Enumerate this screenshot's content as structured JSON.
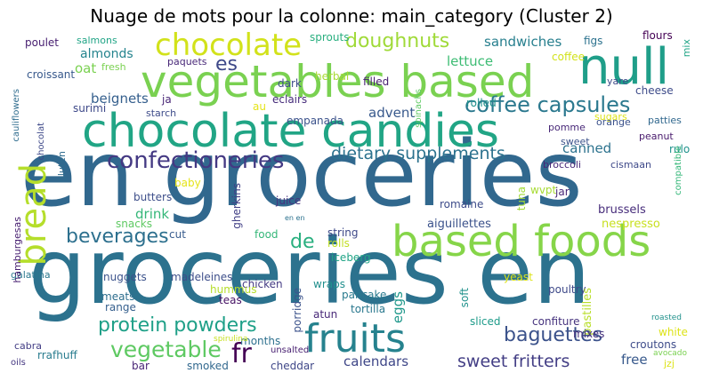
{
  "title": "Nuage de mots pour la colonne: main_category (Cluster 2)",
  "words": [
    {
      "text": "en groceries",
      "color": "#31688e",
      "rot": 0
    },
    {
      "text": "groceries en",
      "color": "#2c728e",
      "rot": 0
    },
    {
      "text": "chocolate candies",
      "color": "#21a585",
      "rot": 0
    },
    {
      "text": "vegetables based",
      "color": "#7ad151",
      "rot": 0
    },
    {
      "text": "null",
      "color": "#1f9e89",
      "rot": 0
    },
    {
      "text": "based foods",
      "color": "#86d549",
      "rot": 0
    },
    {
      "text": "fruits",
      "color": "#26828e",
      "rot": 0
    },
    {
      "text": "bread",
      "color": "#b5de2b",
      "rot": -90
    },
    {
      "text": "chocolate",
      "color": "#d2e21b",
      "rot": 0
    },
    {
      "text": "confectioneries",
      "color": "#443983",
      "rot": 0
    },
    {
      "text": "coffee capsules",
      "color": "#2a788e",
      "rot": 0
    },
    {
      "text": "protein powders",
      "color": "#1fa088",
      "rot": 0
    },
    {
      "text": "beverages",
      "color": "#2d708e",
      "rot": 0
    },
    {
      "text": "dietary supplements",
      "color": "#2c728e",
      "rot": 0
    },
    {
      "text": "vegetable",
      "color": "#5ec962",
      "rot": 0
    },
    {
      "text": "doughnuts",
      "color": "#a0da39",
      "rot": 0
    },
    {
      "text": "baguettes",
      "color": "#3b528b",
      "rot": 0
    },
    {
      "text": "sweet fritters",
      "color": "#433e85",
      "rot": 0
    },
    {
      "text": "fr",
      "color": "#440154",
      "rot": 0
    },
    {
      "text": "de",
      "color": "#29af7f",
      "rot": 0
    },
    {
      "text": "es",
      "color": "#3e4989",
      "rot": 0
    },
    {
      "text": "calendars",
      "color": "#3f4788",
      "rot": 0
    },
    {
      "text": "sandwiches",
      "color": "#277f8e",
      "rot": 0
    },
    {
      "text": "beignets",
      "color": "#355f8d",
      "rot": 0
    },
    {
      "text": "advent",
      "color": "#38598c",
      "rot": 0
    },
    {
      "text": "lettuce",
      "color": "#3dbc74",
      "rot": 0
    },
    {
      "text": "almonds",
      "color": "#25848e",
      "rot": 0
    },
    {
      "text": "oat",
      "color": "#7ad151",
      "rot": 0
    },
    {
      "text": "drink",
      "color": "#35b779",
      "rot": 0
    },
    {
      "text": "canned",
      "color": "#2c728e",
      "rot": 0
    },
    {
      "text": "free",
      "color": "#38598c",
      "rot": 0
    },
    {
      "text": "eggs",
      "color": "#1f988b",
      "rot": -90
    },
    {
      "text": "croutons",
      "color": "#3e4c8a",
      "rot": 0
    },
    {
      "text": "brussels",
      "color": "#472d7b",
      "rot": 0
    },
    {
      "text": "nespresso",
      "color": "#c8e020",
      "rot": 0
    },
    {
      "text": "aiguillettes",
      "color": "#3b528b",
      "rot": 0
    },
    {
      "text": "juice",
      "color": "#46337e",
      "rot": 0
    },
    {
      "text": "poultry",
      "color": "#3e4989",
      "rot": 0
    },
    {
      "text": "pastilles",
      "color": "#b8de29",
      "rot": -90
    },
    {
      "text": "mixes",
      "color": "#46327e",
      "rot": 0
    },
    {
      "text": "confiture",
      "color": "#46337e",
      "rot": 0
    },
    {
      "text": "sliced",
      "color": "#1e9b8a",
      "rot": 0
    },
    {
      "text": "white",
      "color": "#dde318",
      "rot": 0
    },
    {
      "text": "wraps",
      "color": "#218f8d",
      "rot": 0
    },
    {
      "text": "pancake",
      "color": "#297a8e",
      "rot": 0
    },
    {
      "text": "tortilla",
      "color": "#2a788e",
      "rot": 0
    },
    {
      "text": "atun",
      "color": "#482878",
      "rot": 0
    },
    {
      "text": "cheddar",
      "color": "#3f4788",
      "rot": 0
    },
    {
      "text": "smoked",
      "color": "#31688e",
      "rot": 0
    },
    {
      "text": "bar",
      "color": "#482576",
      "rot": 0
    },
    {
      "text": "months",
      "color": "#2d708e",
      "rot": 0
    },
    {
      "text": "chicken",
      "color": "#443b84",
      "rot": 0
    },
    {
      "text": "teas",
      "color": "#471365",
      "rot": 0
    },
    {
      "text": "hummus",
      "color": "#b5de2b",
      "rot": 0
    },
    {
      "text": "meats",
      "color": "#2e6e8e",
      "rot": 0
    },
    {
      "text": "range",
      "color": "#355f8d",
      "rot": 0
    },
    {
      "text": "madeleines",
      "color": "#3d4e8a",
      "rot": 0
    },
    {
      "text": "nuggets",
      "color": "#3b528b",
      "rot": 0
    },
    {
      "text": "galatina",
      "color": "#2a788e",
      "rot": 0
    },
    {
      "text": "hamburgesas",
      "color": "#482071",
      "rot": -90
    },
    {
      "text": "cabra",
      "color": "#433e85",
      "rot": 0
    },
    {
      "text": "rrafhuff",
      "color": "#287c8e",
      "rot": 0
    },
    {
      "text": "oils",
      "color": "#453781",
      "rot": 0
    },
    {
      "text": "porridge",
      "color": "#3b528b",
      "rot": -90
    },
    {
      "text": "gherkins",
      "color": "#424086",
      "rot": -90
    },
    {
      "text": "tuna",
      "color": "#a2da37",
      "rot": -90
    },
    {
      "text": "cut",
      "color": "#375b8d",
      "rot": 0
    },
    {
      "text": "food",
      "color": "#35b779",
      "rot": 0
    },
    {
      "text": "rolls",
      "color": "#c2df23",
      "rot": 0
    },
    {
      "text": "iceberg",
      "color": "#20a486",
      "rot": 0
    },
    {
      "text": "string",
      "color": "#3e4989",
      "rot": 0
    },
    {
      "text": "romaine",
      "color": "#3e4c8a",
      "rot": 0
    },
    {
      "text": "wvpt",
      "color": "#a8db34",
      "rot": 0
    },
    {
      "text": "jar",
      "color": "#482878",
      "rot": 0
    },
    {
      "text": "soft",
      "color": "#20928c",
      "rot": -90
    },
    {
      "text": "yeast",
      "color": "#dde318",
      "rot": 0
    },
    {
      "text": "snacks",
      "color": "#5ec962",
      "rot": 0
    },
    {
      "text": "butters",
      "color": "#3d4e8a",
      "rot": 0
    },
    {
      "text": "baby",
      "color": "#e5e419",
      "rot": 0
    },
    {
      "text": "gluten",
      "color": "#2f6c8e",
      "rot": -90
    },
    {
      "text": "surimi",
      "color": "#3e4989",
      "rot": 0
    },
    {
      "text": "starch",
      "color": "#3e4c8a",
      "rot": 0
    },
    {
      "text": "ja",
      "color": "#482576",
      "rot": 0
    },
    {
      "text": "au",
      "color": "#e5e419",
      "rot": 0
    },
    {
      "text": "eclairs",
      "color": "#472d7b",
      "rot": 0
    },
    {
      "text": "empanada",
      "color": "#3b528b",
      "rot": 0
    },
    {
      "text": "rolled",
      "color": "#21918c",
      "rot": 0
    },
    {
      "text": "filled",
      "color": "#482071",
      "rot": 0
    },
    {
      "text": "herbal",
      "color": "#a8db34",
      "rot": 0
    },
    {
      "text": "dark",
      "color": "#3e4c8a",
      "rot": 0
    },
    {
      "text": "paquets",
      "color": "#482878",
      "rot": 0
    },
    {
      "text": "fresh",
      "color": "#7ad151",
      "rot": 0
    },
    {
      "text": "salmons",
      "color": "#20a486",
      "rot": 0
    },
    {
      "text": "poulet",
      "color": "#482071",
      "rot": 0
    },
    {
      "text": "croissant",
      "color": "#38598c",
      "rot": 0
    },
    {
      "text": "cauliflowers",
      "color": "#2f6c8e",
      "rot": -90
    },
    {
      "text": "chocolat",
      "color": "#3e4989",
      "rot": -90
    },
    {
      "text": "sprouts",
      "color": "#29af7f",
      "rot": 0
    },
    {
      "text": "spinachs",
      "color": "#5ec962",
      "rot": -90
    },
    {
      "text": "coffee",
      "color": "#d2e21b",
      "rot": 0
    },
    {
      "text": "figs",
      "color": "#2c728e",
      "rot": 0
    },
    {
      "text": "flours",
      "color": "#440154",
      "rot": 0
    },
    {
      "text": "mix",
      "color": "#20a486",
      "rot": -90
    },
    {
      "text": "cheese",
      "color": "#3e4c8a",
      "rot": 0
    },
    {
      "text": "yare",
      "color": "#3e4989",
      "rot": 0
    },
    {
      "text": "sugars",
      "color": "#dde318",
      "rot": 0
    },
    {
      "text": "pomme",
      "color": "#482878",
      "rot": 0
    },
    {
      "text": "sweet",
      "color": "#3b528b",
      "rot": 0
    },
    {
      "text": "orange",
      "color": "#3b528b",
      "rot": 0
    },
    {
      "text": "patties",
      "color": "#31688e",
      "rot": 0
    },
    {
      "text": "peanut",
      "color": "#481a6c",
      "rot": 0
    },
    {
      "text": "rulo",
      "color": "#20928c",
      "rot": 0
    },
    {
      "text": "broccoli",
      "color": "#482878",
      "rot": 0
    },
    {
      "text": "cismaan",
      "color": "#3e4989",
      "rot": 0
    },
    {
      "text": "compatible",
      "color": "#35b779",
      "rot": -90
    },
    {
      "text": "roasted",
      "color": "#21918c",
      "rot": 0
    },
    {
      "text": "spirulina",
      "color": "#c8e020",
      "rot": 0
    },
    {
      "text": "unsalted",
      "color": "#482071",
      "rot": 0
    },
    {
      "text": "avocado",
      "color": "#7ad151",
      "rot": 0
    },
    {
      "text": "jzj",
      "color": "#dde318",
      "rot": 0
    },
    {
      "text": "en en",
      "color": "#2c728e",
      "rot": 0
    }
  ]
}
